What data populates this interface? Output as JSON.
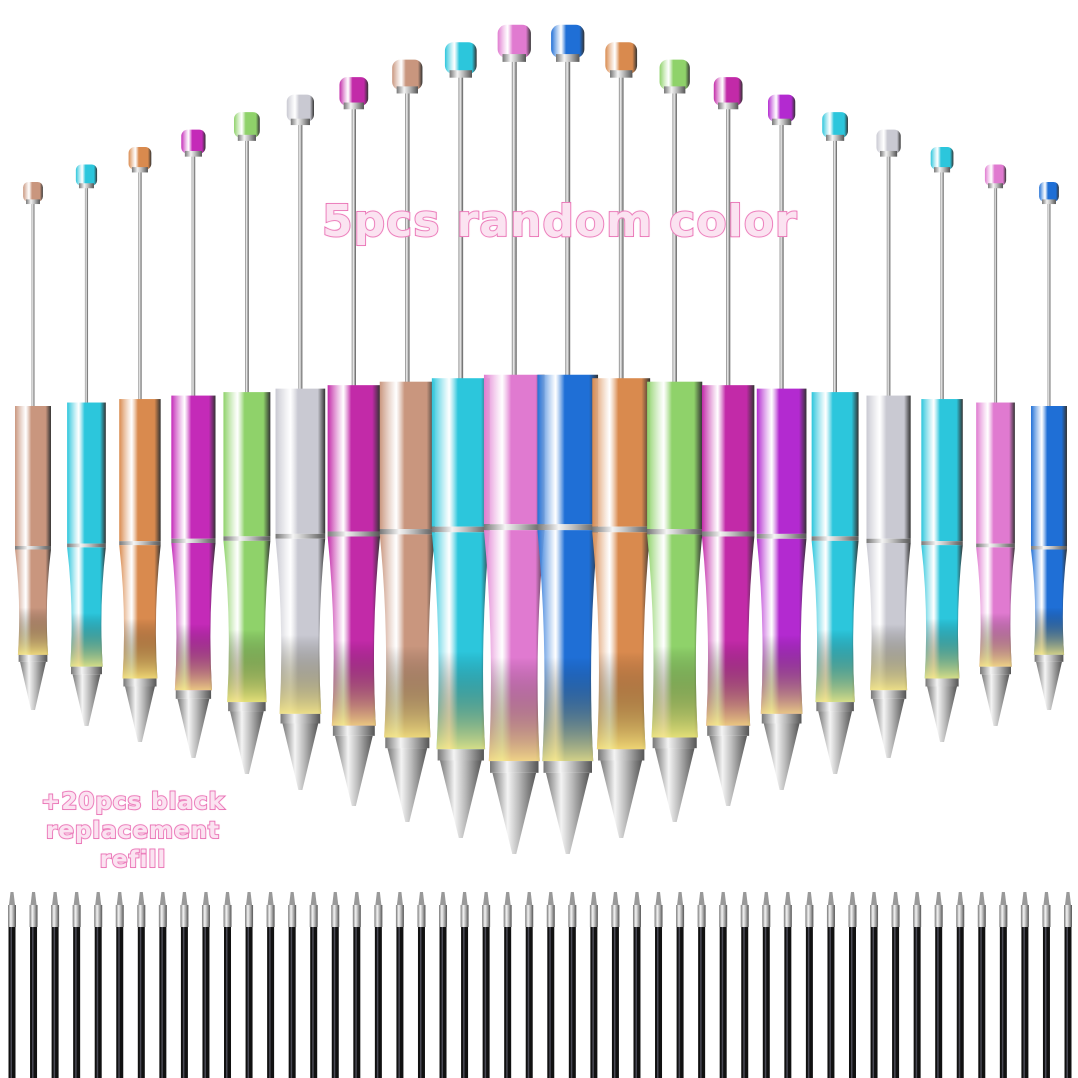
{
  "headline": "5pcs random color",
  "refill_note": {
    "line1": "+20pcs black",
    "line2": "replacement",
    "line3": "refill"
  },
  "pen_colors": [
    "#c9967e",
    "#2cc6dc",
    "#d98a4e",
    "#c42ab8",
    "#8fd26a",
    "#c9c9d2",
    "#c22aa8",
    "#c9967e",
    "#2cc6dc",
    "#e07ad0",
    "#1f6fd6",
    "#d98a4e",
    "#8fd26a",
    "#c22aa8",
    "#b32ad0",
    "#2cc6dc",
    "#c9c9d2",
    "#2cc6dc",
    "#e07ad0",
    "#1f6fd6"
  ],
  "accent_color": "#e86fb3",
  "refill_count_shown": 50
}
